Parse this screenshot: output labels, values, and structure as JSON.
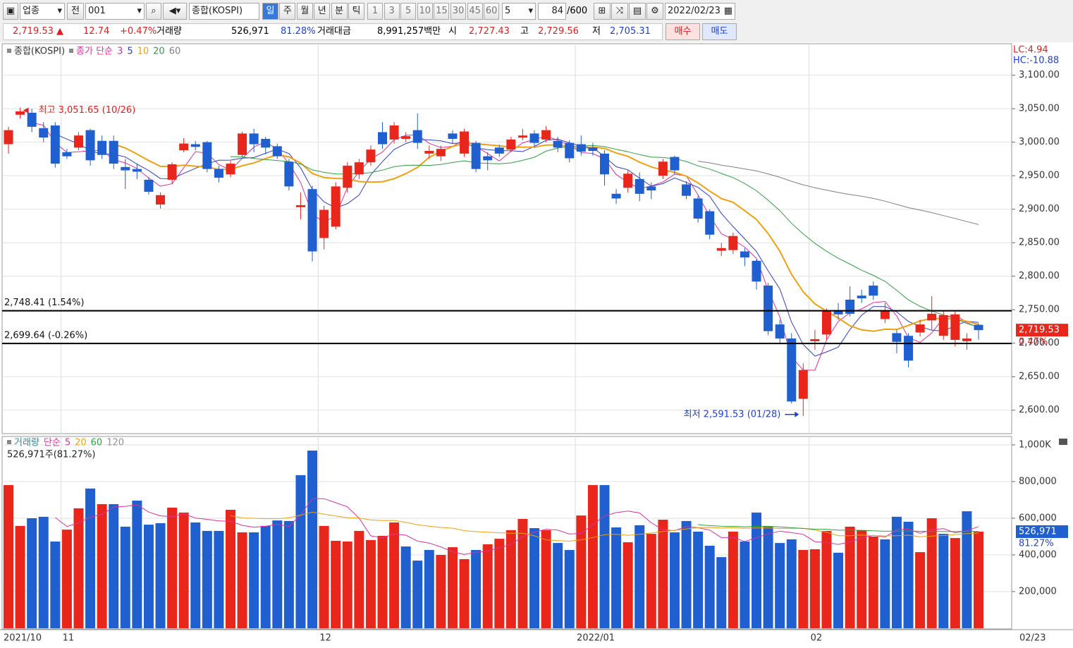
{
  "toolbar": {
    "market": "업종",
    "scope": "전",
    "code": "001",
    "name": "종합(KOSPI)",
    "periods": [
      "일",
      "주",
      "월",
      "년",
      "분",
      "틱"
    ],
    "intervals": [
      "1",
      "3",
      "5",
      "10",
      "15",
      "30",
      "45",
      "60"
    ],
    "interval_select": "5",
    "count": "84",
    "max_count": "/600",
    "date": "2022/02/23"
  },
  "quote": {
    "price": "2,719.53",
    "arrow": "▲",
    "change": "12.74",
    "change_pct": "+0.47%",
    "volume_label": "거래량",
    "volume": "526,971",
    "volume_ratio": "81.28%",
    "amount_label": "거래대금",
    "amount": "8,991,257백만",
    "open_label": "시",
    "open": "2,727.43",
    "high_label": "고",
    "high": "2,729.56",
    "low_label": "저",
    "low": "2,705.31",
    "buy": "매수",
    "sell": "매도"
  },
  "chart_data": [
    {
      "type": "candlestick",
      "title": "종합(KOSPI)",
      "legend_prefix": "종가 단순",
      "ma": [
        {
          "period": 3,
          "color": "#e0309c"
        },
        {
          "period": 5,
          "color": "#3040c0"
        },
        {
          "period": 10,
          "color": "#f0a010"
        },
        {
          "period": 20,
          "color": "#30a040"
        },
        {
          "period": 60,
          "color": "#808080"
        }
      ],
      "categories": [
        "2021/10",
        null,
        null,
        null,
        null,
        "11",
        null,
        null,
        null,
        null,
        null,
        null,
        null,
        null,
        null,
        null,
        null,
        null,
        null,
        null,
        null,
        null,
        null,
        null,
        null,
        null,
        null,
        "12",
        null,
        null,
        null,
        null,
        null,
        null,
        null,
        null,
        null,
        null,
        null,
        null,
        null,
        null,
        null,
        null,
        null,
        null,
        null,
        null,
        null,
        "2022/01",
        null,
        null,
        null,
        null,
        null,
        null,
        null,
        null,
        null,
        null,
        null,
        null,
        null,
        null,
        null,
        null,
        null,
        null,
        null,
        "02",
        null,
        null,
        null,
        null,
        null,
        null,
        null,
        null,
        null,
        null,
        null,
        null,
        null,
        null
      ],
      "last_date": "02/23",
      "open": [
        2997,
        3041,
        3044,
        3021,
        3025,
        2985,
        2992,
        3018,
        3002,
        3002,
        2963,
        2960,
        2944,
        2907,
        2944,
        2988,
        2997,
        3000,
        2960,
        2952,
        2981,
        3013,
        3005,
        2994,
        2971,
        2903,
        2930,
        2857,
        2874,
        2932,
        2952,
        2970,
        3015,
        3004,
        3005,
        3018,
        2983,
        2979,
        3013,
        2983,
        2999,
        2979,
        2992,
        2989,
        3007,
        3013,
        3004,
        3002,
        2999,
        2997,
        2992,
        2983,
        2923,
        2932,
        2945,
        2934,
        2950,
        2978,
        2937,
        2916,
        2897,
        2838,
        2839,
        2837,
        2823,
        2786,
        2728,
        2707,
        2617,
        2703,
        2713,
        2749,
        2765,
        2771,
        2786,
        2736,
        2715,
        2711,
        2716,
        2734,
        2711,
        2705,
        2703,
        2727.43
      ],
      "high": [
        3023,
        3051.65,
        3050,
        3030,
        3030,
        2990,
        3015,
        3020,
        3010,
        3010,
        2975,
        2968,
        2948,
        2925,
        2970,
        3006,
        3002,
        3002,
        2965,
        2972,
        3016,
        3020,
        3008,
        2998,
        2975,
        2925,
        2935,
        2905,
        2940,
        2970,
        2975,
        2995,
        3030,
        3030,
        3015,
        3043,
        2995,
        2995,
        3018,
        3020,
        3002,
        2985,
        2996,
        3008,
        3020,
        3018,
        3024,
        3008,
        3003,
        3010,
        2999,
        2988,
        2930,
        2958,
        2955,
        2940,
        2975,
        2980,
        2942,
        2920,
        2900,
        2850,
        2865,
        2842,
        2825,
        2790,
        2735,
        2715,
        2670,
        2720,
        2752,
        2760,
        2785,
        2780,
        2792,
        2760,
        2720,
        2715,
        2735,
        2770,
        2748,
        2748,
        2715,
        2729.56
      ],
      "low": [
        2983,
        3035,
        3015,
        3000,
        2962,
        2975,
        2988,
        2965,
        2975,
        2960,
        2930,
        2945,
        2922,
        2901,
        2938,
        2985,
        2988,
        2955,
        2940,
        2948,
        2978,
        2985,
        2982,
        2975,
        2928,
        2885,
        2822,
        2840,
        2870,
        2925,
        2945,
        2965,
        2990,
        2998,
        3000,
        2990,
        2975,
        2972,
        2998,
        2978,
        2955,
        2958,
        2978,
        2985,
        3003,
        2992,
        3000,
        2985,
        2970,
        2980,
        2980,
        2935,
        2908,
        2925,
        2912,
        2915,
        2945,
        2952,
        2915,
        2880,
        2855,
        2830,
        2833,
        2815,
        2780,
        2712,
        2700,
        2610,
        2591.53,
        2690,
        2705,
        2735,
        2740,
        2760,
        2765,
        2730,
        2685,
        2664,
        2710,
        2720,
        2705,
        2695,
        2690,
        2705.31
      ],
      "close": [
        3018,
        3046,
        3023,
        3007,
        2968,
        2979,
        3010,
        2973,
        2981,
        2968,
        2958,
        2956,
        2926,
        2921,
        2967,
        2998,
        2993,
        2960,
        2947,
        2968,
        3013,
        2997,
        2992,
        2979,
        2934,
        2906,
        2837,
        2899,
        2934,
        2965,
        2970,
        2989,
        2997,
        3025,
        3009,
        2999,
        2987,
        2990,
        3005,
        3016,
        2960,
        2973,
        2983,
        3004,
        3010,
        2999,
        3018,
        2992,
        2976,
        2986,
        2987,
        2952,
        2916,
        2953,
        2923,
        2928,
        2971,
        2958,
        2920,
        2886,
        2862,
        2842,
        2860,
        2828,
        2792,
        2718,
        2707,
        2613,
        2660,
        2706,
        2749,
        2743,
        2744,
        2767,
        2771,
        2749,
        2702,
        2674,
        2728,
        2744,
        2742,
        2743,
        2707,
        2719.53
      ],
      "up_color": "#e8261c",
      "down_color": "#1f5fd0",
      "ylim": [
        2565,
        3147
      ],
      "yticks": [
        {
          "value": 2600,
          "label": "2,600.00"
        },
        {
          "value": 2650,
          "label": "2,650.00"
        },
        {
          "value": 2700,
          "label": "2,700.00"
        },
        {
          "value": 2750,
          "label": "2,750.00"
        },
        {
          "value": 2800,
          "label": "2,800.00"
        },
        {
          "value": 2850,
          "label": "2,850.00"
        },
        {
          "value": 2900,
          "label": "2,900.00"
        },
        {
          "value": 2950,
          "label": "2,950.00"
        },
        {
          "value": 3000,
          "label": "3,000.00"
        },
        {
          "value": 3050,
          "label": "3,050.00"
        },
        {
          "value": 3100,
          "label": "3,100.00"
        }
      ],
      "grid": true,
      "reference_lines": [
        {
          "value": 2748.41,
          "label": "2,748.41 (1.54%)"
        },
        {
          "value": 2699.64,
          "label": "2,699.64 (-0.26%)"
        }
      ],
      "annotations": [
        {
          "kind": "high",
          "index": 1,
          "value": 3051.65,
          "label": "최고 3,051.65 (10/26)"
        },
        {
          "kind": "low",
          "index": 68,
          "value": 2591.53,
          "label": "최저 2,591.53 (01/28)"
        }
      ],
      "lc": "LC:4.94",
      "hc": "HC:-10.88",
      "last": {
        "value": 2719.53,
        "label": "2,719.53",
        "change": "0.47%"
      }
    },
    {
      "type": "bar",
      "title": "거래량",
      "legend_prefix": "단순",
      "ma": [
        {
          "period": 5,
          "color": "#e0309c"
        },
        {
          "period": 20,
          "color": "#f0a010"
        },
        {
          "period": 60,
          "color": "#30a040"
        },
        {
          "period": 120,
          "color": "#909090"
        }
      ],
      "summary": "526,971주(81.27%)",
      "values": [
        781000,
        558000,
        600000,
        608000,
        473000,
        538000,
        654000,
        762000,
        677000,
        677000,
        554000,
        696000,
        565000,
        573000,
        658000,
        631000,
        577000,
        531000,
        531000,
        646000,
        523000,
        523000,
        558000,
        588000,
        585000,
        835000,
        969000,
        558000,
        477000,
        473000,
        531000,
        481000,
        504000,
        577000,
        446000,
        369000,
        427000,
        400000,
        442000,
        377000,
        427000,
        458000,
        488000,
        535000,
        596000,
        546000,
        535000,
        465000,
        427000,
        615000,
        781000,
        781000,
        550000,
        469000,
        562000,
        515000,
        592000,
        523000,
        585000,
        527000,
        450000,
        388000,
        527000,
        473000,
        631000,
        554000,
        465000,
        485000,
        427000,
        431000,
        531000,
        412000,
        554000,
        535000,
        500000,
        485000,
        608000,
        581000,
        415000,
        600000,
        515000,
        492000,
        638000,
        526971
      ],
      "ylim": [
        0,
        1046000
      ],
      "yticks": [
        {
          "value": 200000,
          "label": "200,000"
        },
        {
          "value": 400000,
          "label": "400,000"
        },
        {
          "value": 600000,
          "label": "600,000"
        },
        {
          "value": 800000,
          "label": "800,000"
        },
        {
          "value": 1000000,
          "label": "1,000K"
        }
      ],
      "grid": true,
      "last": {
        "value": 526971,
        "label": "526,971",
        "change": "81.27%"
      }
    }
  ]
}
